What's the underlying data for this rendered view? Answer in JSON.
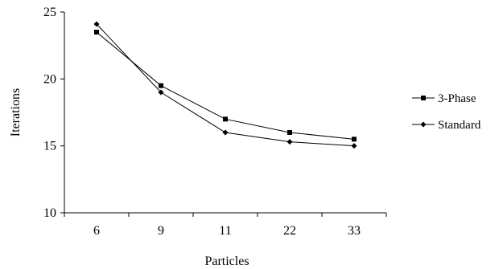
{
  "chart_data": {
    "type": "line",
    "title": "",
    "xlabel": "Particles",
    "ylabel": "Iterations",
    "categories": [
      "6",
      "9",
      "11",
      "22",
      "33"
    ],
    "ylim": [
      10,
      25
    ],
    "yticks": [
      "10",
      "15",
      "20",
      "25"
    ],
    "grid": false,
    "legend_position": "right",
    "series": [
      {
        "name": "3-Phase",
        "marker": "square",
        "color": "#000000",
        "values": [
          23.5,
          19.5,
          17.0,
          16.0,
          15.5
        ]
      },
      {
        "name": "Standard",
        "marker": "diamond",
        "color": "#000000",
        "values": [
          24.1,
          19.0,
          16.0,
          15.3,
          15.0
        ]
      }
    ]
  }
}
